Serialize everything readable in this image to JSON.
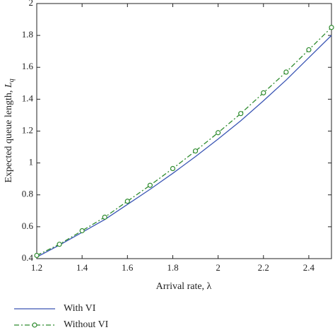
{
  "chart_data": {
    "type": "line",
    "x_label": "Arrival rate, λ",
    "y_label": "Expected queue length, ",
    "y_label_symbol": "L",
    "y_label_subscript": "q",
    "x": [
      1.2,
      1.3,
      1.4,
      1.5,
      1.6,
      1.7,
      1.8,
      1.9,
      2.0,
      2.1,
      2.2,
      2.3,
      2.4,
      2.5
    ],
    "series": [
      {
        "name": "With VI",
        "color": "#3a55b4",
        "dash": "solid",
        "marker": "none",
        "values": [
          0.41,
          0.485,
          0.565,
          0.645,
          0.74,
          0.835,
          0.935,
          1.04,
          1.15,
          1.265,
          1.39,
          1.52,
          1.66,
          1.8
        ]
      },
      {
        "name": "Without VI",
        "color": "#2e8b2e",
        "dash": "dashdot",
        "marker": "circle",
        "values": [
          0.42,
          0.49,
          0.575,
          0.66,
          0.76,
          0.86,
          0.965,
          1.075,
          1.19,
          1.31,
          1.44,
          1.57,
          1.71,
          1.85
        ]
      }
    ],
    "xlim": [
      1.2,
      2.5
    ],
    "ylim": [
      0.4,
      2
    ],
    "xticks": [
      1.2,
      1.4,
      1.6,
      1.8,
      2,
      2.2,
      2.4
    ],
    "yticks": [
      0.4,
      0.6,
      0.8,
      1,
      1.2,
      1.4,
      1.6,
      1.8,
      2
    ],
    "grid": false,
    "legend": "bottom-left"
  }
}
